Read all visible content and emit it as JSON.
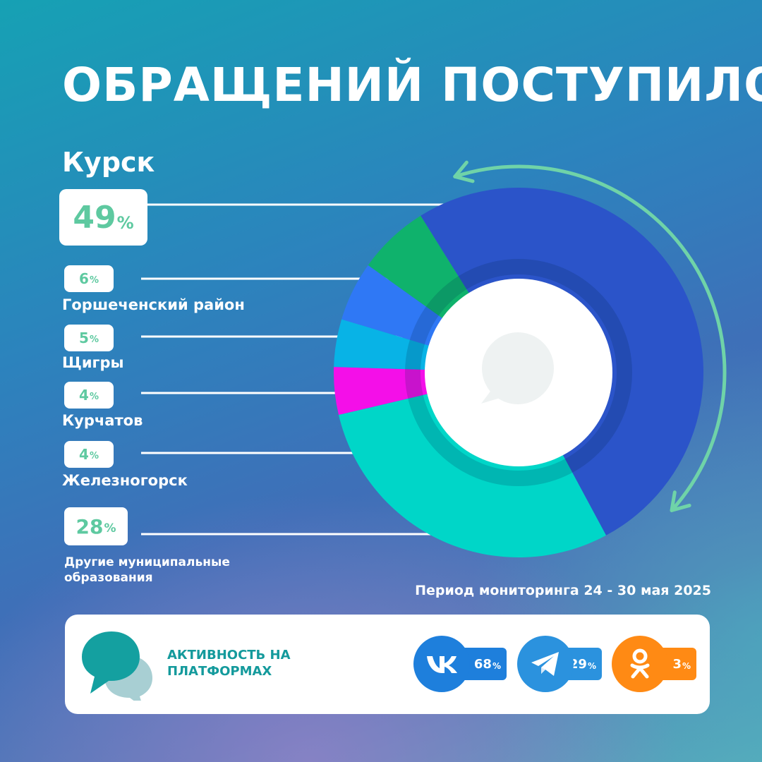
{
  "title": "ОБРАЩЕНИЙ ПОСТУПИЛО",
  "percent_sign": "%",
  "period": "Период мониторинга 24 - 30 мая 2025",
  "colors": {
    "accent_green": "#5ec9a0",
    "arrow": "#6fd3a8",
    "panel_text": "#149a9c"
  },
  "chart_data": {
    "type": "pie",
    "donut": true,
    "center_icon": "speech-bubble-icon",
    "slices": [
      {
        "label": "Курск",
        "value": 49,
        "color": "#2b54c9"
      },
      {
        "label": "Другие муниципальные образования",
        "value": 28,
        "color": "#00d6c8"
      },
      {
        "label": "Железногорск",
        "value": 4,
        "color": "#f40fe8"
      },
      {
        "label": "Курчатов",
        "value": 4,
        "color": "#08b3e6"
      },
      {
        "label": "Щигры",
        "value": 5,
        "color": "#2f78f5"
      },
      {
        "label": "Горшеченский район",
        "value": 6,
        "color": "#0fb26c"
      }
    ]
  },
  "platforms": {
    "title": "АКТИВНОСТЬ НА ПЛАТФОРМАХ",
    "items": [
      {
        "name": "VK",
        "icon": "vk-logo-icon",
        "value": 68,
        "color": "#1e7fdc"
      },
      {
        "name": "Telegram",
        "icon": "telegram-logo-icon",
        "value": 29,
        "color": "#2b92de"
      },
      {
        "name": "Одноклассники",
        "icon": "ok-logo-icon",
        "value": 3,
        "color": "#ff8a14"
      }
    ]
  }
}
